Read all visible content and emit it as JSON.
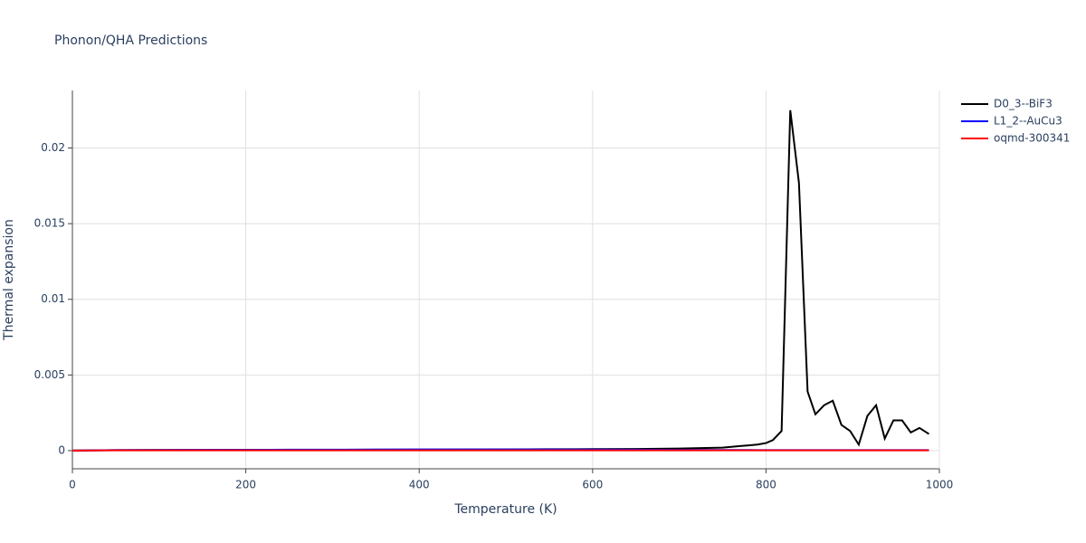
{
  "chart_data": {
    "type": "line",
    "title": "Phonon/QHA Predictions",
    "xlabel": "Temperature (K)",
    "ylabel": "Thermal expansion",
    "x": [
      0,
      50,
      100,
      150,
      200,
      250,
      300,
      350,
      400,
      450,
      500,
      550,
      600,
      650,
      700,
      750,
      770,
      780,
      790,
      800,
      808,
      818,
      828,
      838,
      848,
      857,
      867,
      877,
      887,
      897,
      907,
      917,
      927,
      937,
      947,
      957,
      967,
      977,
      988
    ],
    "series": [
      {
        "name": "D0_3--BiF3",
        "color": "#000000",
        "values": [
          0,
          3e-05,
          4e-05,
          4e-05,
          5e-05,
          5e-05,
          5e-05,
          6e-05,
          6e-05,
          7e-05,
          8e-05,
          9e-05,
          0.0001,
          0.00011,
          0.00014,
          0.0002,
          0.0003,
          0.00035,
          0.0004,
          0.0005,
          0.0007,
          0.0013,
          0.0225,
          0.0177,
          0.0039,
          0.0024,
          0.003,
          0.0033,
          0.0017,
          0.0013,
          0.0004,
          0.0023,
          0.003,
          0.0008,
          0.002,
          0.002,
          0.0012,
          0.0015,
          0.0011
        ]
      },
      {
        "name": "L1_2--AuCu3",
        "color": "#0000ff",
        "values": [
          0,
          3e-05,
          4e-05,
          5e-05,
          5e-05,
          6e-05,
          6e-05,
          7e-05,
          8e-05,
          8e-05,
          8e-05,
          8e-05,
          7e-05,
          6e-05,
          5e-05,
          4e-05,
          4e-05,
          4e-05,
          3e-05,
          3e-05,
          3e-05,
          3e-05,
          3e-05,
          3e-05,
          3e-05,
          3e-05,
          3e-05,
          3e-05,
          3e-05,
          3e-05,
          3e-05,
          3e-05,
          3e-05,
          3e-05,
          3e-05,
          3e-05,
          3e-05,
          3e-05,
          3e-05
        ]
      },
      {
        "name": "oqmd-300341",
        "color": "#ff0000",
        "values": [
          0,
          2e-05,
          2e-05,
          2e-05,
          2e-05,
          2e-05,
          2e-05,
          2e-05,
          2e-05,
          2e-05,
          2e-05,
          2e-05,
          2e-05,
          2e-05,
          2e-05,
          2e-05,
          2e-05,
          2e-05,
          2e-05,
          2e-05,
          2e-05,
          2e-05,
          2e-05,
          2e-05,
          2e-05,
          2e-05,
          2e-05,
          2e-05,
          2e-05,
          2e-05,
          2e-05,
          2e-05,
          2e-05,
          2e-05,
          2e-05,
          2e-05,
          2e-05,
          2e-05,
          2e-05
        ]
      }
    ],
    "xlim": [
      0,
      1000
    ],
    "xticks": [
      0,
      200,
      400,
      600,
      800,
      1000
    ],
    "ylim": [
      -0.0012,
      0.0238
    ],
    "yticks": [
      0,
      0.005,
      0.01,
      0.015,
      0.02
    ],
    "grid": true,
    "legend": "outside-right"
  }
}
